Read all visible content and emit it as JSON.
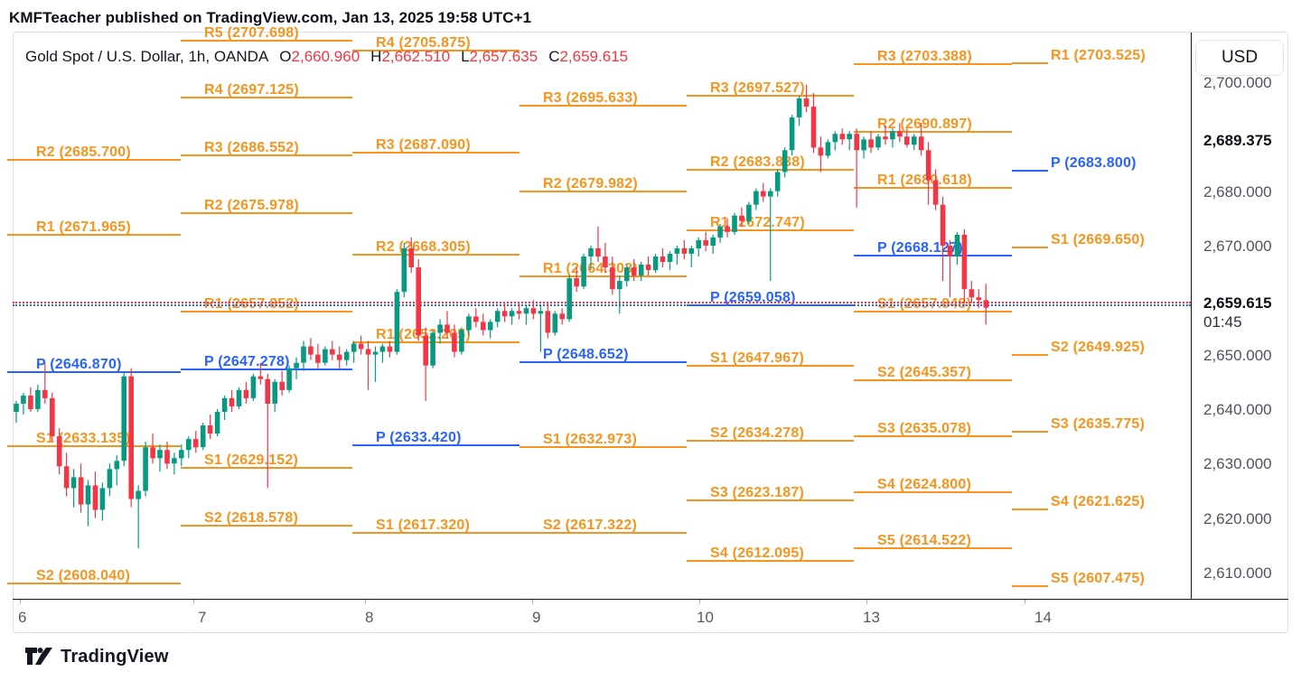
{
  "header": {
    "attribution": "KMFTeacher published on TradingView.com, Jan 13, 2025 19:58 UTC+1"
  },
  "title": {
    "symbol": "Gold Spot / U.S. Dollar, 1h, OANDA",
    "ohlc": [
      {
        "k": "O",
        "v": "2,660.960"
      },
      {
        "k": "H",
        "v": "2,662.510"
      },
      {
        "k": "L",
        "v": "2,657.635"
      },
      {
        "k": "C",
        "v": "2,659.615"
      }
    ]
  },
  "axis_panel": {
    "currency_button": "USD",
    "countdown": "01:45"
  },
  "footer": {
    "logo_text": "TradingView"
  },
  "colors": {
    "up": "#089981",
    "down": "#f23645",
    "pivot_rs": "#f7941d",
    "pivot_p": "#2962ff",
    "close_dotted": "#f23645",
    "pivot_dotted": "#2962ff"
  },
  "chart_data": {
    "type": "candlestick",
    "symbol": "Gold Spot / U.S. Dollar",
    "interval": "1h",
    "exchange": "OANDA",
    "current_ohlc": {
      "open": 2660.96,
      "high": 2662.51,
      "low": 2657.635,
      "close": 2659.615
    },
    "ylim": [
      2603,
      2712
    ],
    "x_day_labels": [
      "6",
      "7",
      "8",
      "9",
      "10",
      "13",
      "14"
    ],
    "y_ticks": [
      {
        "text": "2,700.000",
        "price": 2700.0,
        "bold": false
      },
      {
        "text": "2,689.375",
        "price": 2689.375,
        "bold": true
      },
      {
        "text": "2,680.000",
        "price": 2680.0,
        "bold": false
      },
      {
        "text": "2,670.000",
        "price": 2670.0,
        "bold": false
      },
      {
        "text": "2,659.615",
        "price": 2659.615,
        "bold": true,
        "countdown": "01:45"
      },
      {
        "text": "2,650.000",
        "price": 2650.0,
        "bold": false
      },
      {
        "text": "2,640.000",
        "price": 2640.0,
        "bold": false
      },
      {
        "text": "2,630.000",
        "price": 2630.0,
        "bold": false
      },
      {
        "text": "2,620.000",
        "price": 2620.0,
        "bold": false
      },
      {
        "text": "2,610.000",
        "price": 2610.0,
        "bold": false
      }
    ],
    "close_line_price": 2659.615,
    "pivot_dotted_price": 2659.058,
    "pivot_groups": [
      {
        "day": "6",
        "levels": [
          {
            "text": "R2 (2685.700)",
            "price": 2685.7,
            "kind": "RS"
          },
          {
            "text": "R1 (2671.965)",
            "price": 2671.965,
            "kind": "RS"
          },
          {
            "text": "P (2646.870)",
            "price": 2646.87,
            "kind": "P"
          },
          {
            "text": "S1 (2633.135)",
            "price": 2633.135,
            "kind": "RS"
          },
          {
            "text": "S2 (2608.040)",
            "price": 2608.04,
            "kind": "RS"
          }
        ]
      },
      {
        "day": "7",
        "levels": [
          {
            "text": "R5 (2707.698)",
            "price": 2707.698,
            "kind": "RS"
          },
          {
            "text": "R4 (2697.125)",
            "price": 2697.125,
            "kind": "RS"
          },
          {
            "text": "R3 (2686.552)",
            "price": 2686.552,
            "kind": "RS"
          },
          {
            "text": "R2 (2675.978)",
            "price": 2675.978,
            "kind": "RS"
          },
          {
            "text": "R1 (2657.852)",
            "price": 2657.852,
            "kind": "RS"
          },
          {
            "text": "P (2647.278)",
            "price": 2647.278,
            "kind": "P"
          },
          {
            "text": "S1 (2629.152)",
            "price": 2629.152,
            "kind": "RS"
          },
          {
            "text": "S2 (2618.578)",
            "price": 2618.578,
            "kind": "RS"
          }
        ]
      },
      {
        "day": "8",
        "levels": [
          {
            "text": "R4 (2705.875)",
            "price": 2705.875,
            "kind": "RS"
          },
          {
            "text": "R3 (2687.090)",
            "price": 2687.09,
            "kind": "RS"
          },
          {
            "text": "R2 (2668.305)",
            "price": 2668.305,
            "kind": "RS"
          },
          {
            "text": "R1 (2652.205)",
            "price": 2652.205,
            "kind": "RS"
          },
          {
            "text": "P (2633.420)",
            "price": 2633.42,
            "kind": "P"
          },
          {
            "text": "S1 (2617.320)",
            "price": 2617.32,
            "kind": "RS"
          }
        ]
      },
      {
        "day": "9",
        "levels": [
          {
            "text": "R3 (2695.633)",
            "price": 2695.633,
            "kind": "RS"
          },
          {
            "text": "R2 (2679.982)",
            "price": 2679.982,
            "kind": "RS"
          },
          {
            "text": "R1 (2664.303)",
            "price": 2664.303,
            "kind": "RS"
          },
          {
            "text": "P (2648.652)",
            "price": 2648.652,
            "kind": "P"
          },
          {
            "text": "S1 (2632.973)",
            "price": 2632.973,
            "kind": "RS"
          },
          {
            "text": "S2 (2617.322)",
            "price": 2617.322,
            "kind": "RS"
          }
        ]
      },
      {
        "day": "10",
        "levels": [
          {
            "text": "R3 (2697.527)",
            "price": 2697.527,
            "kind": "RS"
          },
          {
            "text": "R2 (2683.838)",
            "price": 2683.838,
            "kind": "RS"
          },
          {
            "text": "R1 (2672.747)",
            "price": 2672.747,
            "kind": "RS"
          },
          {
            "text": "P (2659.058)",
            "price": 2659.058,
            "kind": "P"
          },
          {
            "text": "S1 (2647.967)",
            "price": 2647.967,
            "kind": "RS"
          },
          {
            "text": "S2 (2634.278)",
            "price": 2634.278,
            "kind": "RS"
          },
          {
            "text": "S3 (2623.187)",
            "price": 2623.187,
            "kind": "RS"
          },
          {
            "text": "S4 (2612.095)",
            "price": 2612.095,
            "kind": "RS"
          }
        ]
      },
      {
        "day": "13",
        "levels": [
          {
            "text": "R3 (2703.388)",
            "price": 2703.388,
            "kind": "RS"
          },
          {
            "text": "R2 (2690.897)",
            "price": 2690.897,
            "kind": "RS"
          },
          {
            "text": "R1 (2680.618)",
            "price": 2680.618,
            "kind": "RS"
          },
          {
            "text": "P (2668.127)",
            "price": 2668.127,
            "kind": "P"
          },
          {
            "text": "S1 (2657.848)",
            "price": 2657.848,
            "kind": "RS"
          },
          {
            "text": "S2 (2645.357)",
            "price": 2645.357,
            "kind": "RS"
          },
          {
            "text": "S3 (2635.078)",
            "price": 2635.078,
            "kind": "RS"
          },
          {
            "text": "S4 (2624.800)",
            "price": 2624.8,
            "kind": "RS"
          },
          {
            "text": "S5 (2614.522)",
            "price": 2614.522,
            "kind": "RS"
          }
        ]
      },
      {
        "day": "14",
        "levels": [
          {
            "text": "R1 (2703.525)",
            "price": 2703.525,
            "kind": "RS"
          },
          {
            "text": "P (2683.800)",
            "price": 2683.8,
            "kind": "P"
          },
          {
            "text": "S1 (2669.650)",
            "price": 2669.65,
            "kind": "RS"
          },
          {
            "text": "S2 (2649.925)",
            "price": 2649.925,
            "kind": "RS"
          },
          {
            "text": "S3 (2635.775)",
            "price": 2635.775,
            "kind": "RS"
          },
          {
            "text": "S4 (2621.625)",
            "price": 2621.625,
            "kind": "RS"
          },
          {
            "text": "S5 (2607.475)",
            "price": 2607.475,
            "kind": "RS"
          }
        ]
      }
    ],
    "candles_ohlc": [
      [
        2639.5,
        2641.5,
        2637.5,
        2641
      ],
      [
        2641,
        2643,
        2639,
        2642.5
      ],
      [
        2642.5,
        2644,
        2639.5,
        2640
      ],
      [
        2640,
        2644.5,
        2639.5,
        2643.5
      ],
      [
        2643.5,
        2648.5,
        2641,
        2642
      ],
      [
        2642,
        2643,
        2634,
        2635
      ],
      [
        2635,
        2636.5,
        2628,
        2629.5
      ],
      [
        2629.5,
        2632,
        2624,
        2625.5
      ],
      [
        2625.5,
        2629,
        2622,
        2627.5
      ],
      [
        2627.5,
        2630,
        2621,
        2622.5
      ],
      [
        2622.5,
        2627,
        2618.5,
        2626
      ],
      [
        2626,
        2628.5,
        2620,
        2621.5
      ],
      [
        2621.5,
        2626.5,
        2619.5,
        2625.5
      ],
      [
        2625.5,
        2630,
        2624,
        2629
      ],
      [
        2629,
        2631.5,
        2626,
        2630.5
      ],
      [
        2630.5,
        2647,
        2629.5,
        2646
      ],
      [
        2646,
        2647.5,
        2622,
        2623.5
      ],
      [
        2623.5,
        2626,
        2614.5,
        2625
      ],
      [
        2625,
        2634,
        2624,
        2633
      ],
      [
        2633,
        2635.5,
        2630,
        2631
      ],
      [
        2631,
        2633.5,
        2628.5,
        2632.5
      ],
      [
        2632.5,
        2634,
        2629,
        2630
      ],
      [
        2630,
        2632,
        2628,
        2631
      ],
      [
        2631,
        2633.5,
        2629.5,
        2632.5
      ],
      [
        2632.5,
        2635,
        2631,
        2634.5
      ],
      [
        2634.5,
        2636,
        2632,
        2633
      ],
      [
        2633,
        2637.5,
        2632.5,
        2637
      ],
      [
        2637,
        2639,
        2634.5,
        2635.5
      ],
      [
        2635.5,
        2640,
        2635,
        2639.5
      ],
      [
        2639.5,
        2642.5,
        2638,
        2642
      ],
      [
        2642,
        2643.5,
        2639.5,
        2640.5
      ],
      [
        2640.5,
        2644,
        2640,
        2643.5
      ],
      [
        2643.5,
        2645,
        2641,
        2642
      ],
      [
        2642,
        2646.5,
        2641.5,
        2646
      ],
      [
        2646,
        2648.5,
        2644.5,
        2645.5
      ],
      [
        2645.5,
        2646.5,
        2625.5,
        2641
      ],
      [
        2641,
        2645.5,
        2639.5,
        2645
      ],
      [
        2645,
        2647,
        2642.5,
        2643.5
      ],
      [
        2643.5,
        2648,
        2643,
        2647.5
      ],
      [
        2647.5,
        2649.5,
        2645.5,
        2648.5
      ],
      [
        2648.5,
        2652.5,
        2647,
        2651.5
      ],
      [
        2651.5,
        2653,
        2649,
        2650
      ],
      [
        2650,
        2652,
        2647.5,
        2648.5
      ],
      [
        2648.5,
        2651.5,
        2648,
        2651
      ],
      [
        2651,
        2652.5,
        2649,
        2650
      ],
      [
        2650,
        2651.5,
        2647.5,
        2649
      ],
      [
        2649,
        2651,
        2648,
        2650.5
      ],
      [
        2650.5,
        2652.5,
        2648.5,
        2652
      ],
      [
        2652,
        2653.5,
        2650,
        2651
      ],
      [
        2651,
        2652.5,
        2643.5,
        2650
      ],
      [
        2650,
        2651.5,
        2645,
        2650.5
      ],
      [
        2650.5,
        2652,
        2648.5,
        2651.5
      ],
      [
        2651.5,
        2652.5,
        2649.5,
        2650.5
      ],
      [
        2650.5,
        2662,
        2650,
        2661.5
      ],
      [
        2661.5,
        2670.5,
        2660.5,
        2669.5
      ],
      [
        2669.5,
        2671.5,
        2665,
        2666
      ],
      [
        2666,
        2667.5,
        2652.5,
        2653.5
      ],
      [
        2653.5,
        2655,
        2641.5,
        2648
      ],
      [
        2648,
        2654.5,
        2647.5,
        2654
      ],
      [
        2654,
        2656.5,
        2652,
        2655.5
      ],
      [
        2655.5,
        2658,
        2653,
        2654
      ],
      [
        2654,
        2655.5,
        2649.5,
        2650.5
      ],
      [
        2650.5,
        2655,
        2650,
        2654.5
      ],
      [
        2654.5,
        2657.5,
        2653.5,
        2657
      ],
      [
        2657,
        2658.5,
        2655,
        2656
      ],
      [
        2656,
        2657.5,
        2653.5,
        2654.5
      ],
      [
        2654.5,
        2656.5,
        2653,
        2656
      ],
      [
        2656,
        2658.5,
        2655,
        2658
      ],
      [
        2658,
        2659.5,
        2656,
        2657
      ],
      [
        2657,
        2658.5,
        2655.5,
        2658
      ],
      [
        2658,
        2659.5,
        2656.5,
        2657.5
      ],
      [
        2657.5,
        2659,
        2655.5,
        2658.5
      ],
      [
        2658.5,
        2660,
        2656.5,
        2657.5
      ],
      [
        2657.5,
        2659,
        2650.5,
        2658
      ],
      [
        2658,
        2659.5,
        2653,
        2654
      ],
      [
        2654,
        2658,
        2653.5,
        2657.5
      ],
      [
        2657.5,
        2658.5,
        2655.5,
        2656.5
      ],
      [
        2656.5,
        2664.5,
        2656,
        2664
      ],
      [
        2664,
        2666,
        2661.5,
        2662.5
      ],
      [
        2662.5,
        2668.5,
        2662,
        2668
      ],
      [
        2668,
        2670,
        2665.5,
        2669.5
      ],
      [
        2669.5,
        2673.5,
        2667,
        2668
      ],
      [
        2668,
        2670.5,
        2665,
        2666
      ],
      [
        2666,
        2668,
        2661,
        2662
      ],
      [
        2662,
        2664.5,
        2657.5,
        2663.5
      ],
      [
        2663.5,
        2666.5,
        2662.5,
        2666
      ],
      [
        2666,
        2667.5,
        2663.5,
        2664.5
      ],
      [
        2664.5,
        2667,
        2663.5,
        2666.5
      ],
      [
        2666.5,
        2668,
        2664.5,
        2665.5
      ],
      [
        2665.5,
        2668.5,
        2665,
        2668
      ],
      [
        2668,
        2669.5,
        2666,
        2667
      ],
      [
        2667,
        2669,
        2665.5,
        2668.5
      ],
      [
        2668.5,
        2670,
        2666.5,
        2669.5
      ],
      [
        2669.5,
        2671,
        2667.5,
        2668.5
      ],
      [
        2668.5,
        2670,
        2666,
        2669.5
      ],
      [
        2669.5,
        2671.5,
        2668,
        2671
      ],
      [
        2671,
        2672.5,
        2669,
        2670
      ],
      [
        2670,
        2672,
        2668.5,
        2671.5
      ],
      [
        2671.5,
        2674,
        2670.5,
        2673.5
      ],
      [
        2673.5,
        2675,
        2671.5,
        2672.5
      ],
      [
        2672.5,
        2676,
        2672,
        2675.5
      ],
      [
        2675.5,
        2677,
        2673.5,
        2674.5
      ],
      [
        2674.5,
        2678,
        2674,
        2677.5
      ],
      [
        2677.5,
        2680.5,
        2676.5,
        2680
      ],
      [
        2680,
        2681.5,
        2678,
        2679
      ],
      [
        2679,
        2680.5,
        2663.5,
        2680
      ],
      [
        2680,
        2684,
        2679,
        2683.5
      ],
      [
        2683.5,
        2688,
        2682.5,
        2687.5
      ],
      [
        2687.5,
        2694,
        2686.5,
        2693.5
      ],
      [
        2693.5,
        2697.5,
        2692,
        2697
      ],
      [
        2697,
        2699.5,
        2694.5,
        2695.5
      ],
      [
        2695.5,
        2698,
        2687,
        2688
      ],
      [
        2688,
        2690,
        2683.5,
        2686.5
      ],
      [
        2686.5,
        2689.5,
        2686,
        2689
      ],
      [
        2689,
        2691,
        2687.5,
        2690.5
      ],
      [
        2690.5,
        2691.5,
        2688.5,
        2689.5
      ],
      [
        2689.5,
        2691,
        2687.5,
        2690.5
      ],
      [
        2690.5,
        2691.5,
        2677,
        2687.5
      ],
      [
        2687.5,
        2690,
        2686,
        2689.5
      ],
      [
        2689.5,
        2691,
        2687,
        2688
      ],
      [
        2688,
        2690.5,
        2687.5,
        2690
      ],
      [
        2690,
        2692,
        2688.5,
        2689.5
      ],
      [
        2689.5,
        2691.5,
        2688,
        2691
      ],
      [
        2691,
        2692.5,
        2689,
        2690
      ],
      [
        2690,
        2691.5,
        2688,
        2688.5
      ],
      [
        2688.5,
        2690.5,
        2687.5,
        2690
      ],
      [
        2690,
        2692.5,
        2686.5,
        2687.5
      ],
      [
        2687.5,
        2689,
        2677.5,
        2682
      ],
      [
        2682,
        2684,
        2676.5,
        2677.5
      ],
      [
        2677.5,
        2679,
        2663.5,
        2670
      ],
      [
        2670,
        2671,
        2660.5,
        2668
      ],
      [
        2668,
        2672.5,
        2666.5,
        2672
      ],
      [
        2672,
        2673,
        2659.5,
        2662
      ],
      [
        2662,
        2663.5,
        2659.5,
        2660.5
      ],
      [
        2660.5,
        2662,
        2658.5,
        2660
      ],
      [
        2660,
        2663,
        2655.5,
        2658.6
      ]
    ]
  }
}
